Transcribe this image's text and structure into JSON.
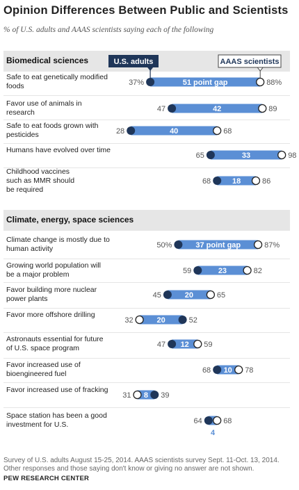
{
  "title": "Opinion Differences Between Public and Scientists",
  "subtitle": "% of U.S. adults and AAAS scientists saying each of the following",
  "colors": {
    "bar": "#5b8fd5",
    "public_dot": "#1f3659",
    "scientist_dot": "#ffffff",
    "band": "#e6e6e6",
    "gap_text_small": "#5b8fd5"
  },
  "chart_data": {
    "type": "dumbbell",
    "series": [
      {
        "name": "U.S. adults",
        "marker": "filled"
      },
      {
        "name": "AAAS scientists",
        "marker": "open"
      }
    ],
    "sections": [
      {
        "name": "Biomedical sciences",
        "items": [
          {
            "label": "Safe to eat genetically modified foods",
            "public": 37,
            "scientists": 88,
            "public_text": "37%",
            "scientists_text": "88%",
            "gap_text": "51 point gap"
          },
          {
            "label": "Favor use of animals in research",
            "public": 47,
            "scientists": 89,
            "public_text": "47",
            "scientists_text": "89",
            "gap_text": "42"
          },
          {
            "label": "Safe to eat foods grown with pesticides",
            "public": 28,
            "scientists": 68,
            "public_text": "28",
            "scientists_text": "68",
            "gap_text": "40"
          },
          {
            "label": "Humans have evolved over time",
            "public": 65,
            "scientists": 98,
            "public_text": "65",
            "scientists_text": "98",
            "gap_text": "33"
          },
          {
            "label": "Childhood vaccines such as MMR should be required",
            "public": 68,
            "scientists": 86,
            "public_text": "68",
            "scientists_text": "86",
            "gap_text": "18"
          }
        ]
      },
      {
        "name": "Climate, energy, space sciences",
        "items": [
          {
            "label": "Climate change is mostly due to human activity",
            "public": 50,
            "scientists": 87,
            "public_text": "50%",
            "scientists_text": "87%",
            "gap_text": "37 point gap"
          },
          {
            "label": "Growing world population will be a major problem",
            "public": 59,
            "scientists": 82,
            "public_text": "59",
            "scientists_text": "82",
            "gap_text": "23"
          },
          {
            "label": "Favor building more nuclear power plants",
            "public": 45,
            "scientists": 65,
            "public_text": "45",
            "scientists_text": "65",
            "gap_text": "20"
          },
          {
            "label": "Favor more offshore drilling",
            "public": 52,
            "scientists": 32,
            "public_text": "52",
            "scientists_text": "32",
            "gap_text": "20"
          },
          {
            "label": "Astronauts essential for future of U.S. space program",
            "public": 47,
            "scientists": 59,
            "public_text": "47",
            "scientists_text": "59",
            "gap_text": "12"
          },
          {
            "label": "Favor increased use of bioengineered fuel",
            "public": 68,
            "scientists": 78,
            "public_text": "68",
            "scientists_text": "78",
            "gap_text": "10"
          },
          {
            "label": "Favor increased use of fracking",
            "public": 39,
            "scientists": 31,
            "public_text": "39",
            "scientists_text": "31",
            "gap_text": "8"
          },
          {
            "label": "Space station has been a good investment for U.S.",
            "public": 64,
            "scientists": 68,
            "public_text": "64",
            "scientists_text": "68",
            "gap_text": "4"
          }
        ]
      }
    ]
  },
  "footnote": "Survey of U.S. adults August 15-25, 2014. AAAS scientists survey Sept. 11-Oct. 13, 2014. Other responses and those saying don't know or giving no answer are not shown.",
  "source": "PEW RESEARCH CENTER"
}
